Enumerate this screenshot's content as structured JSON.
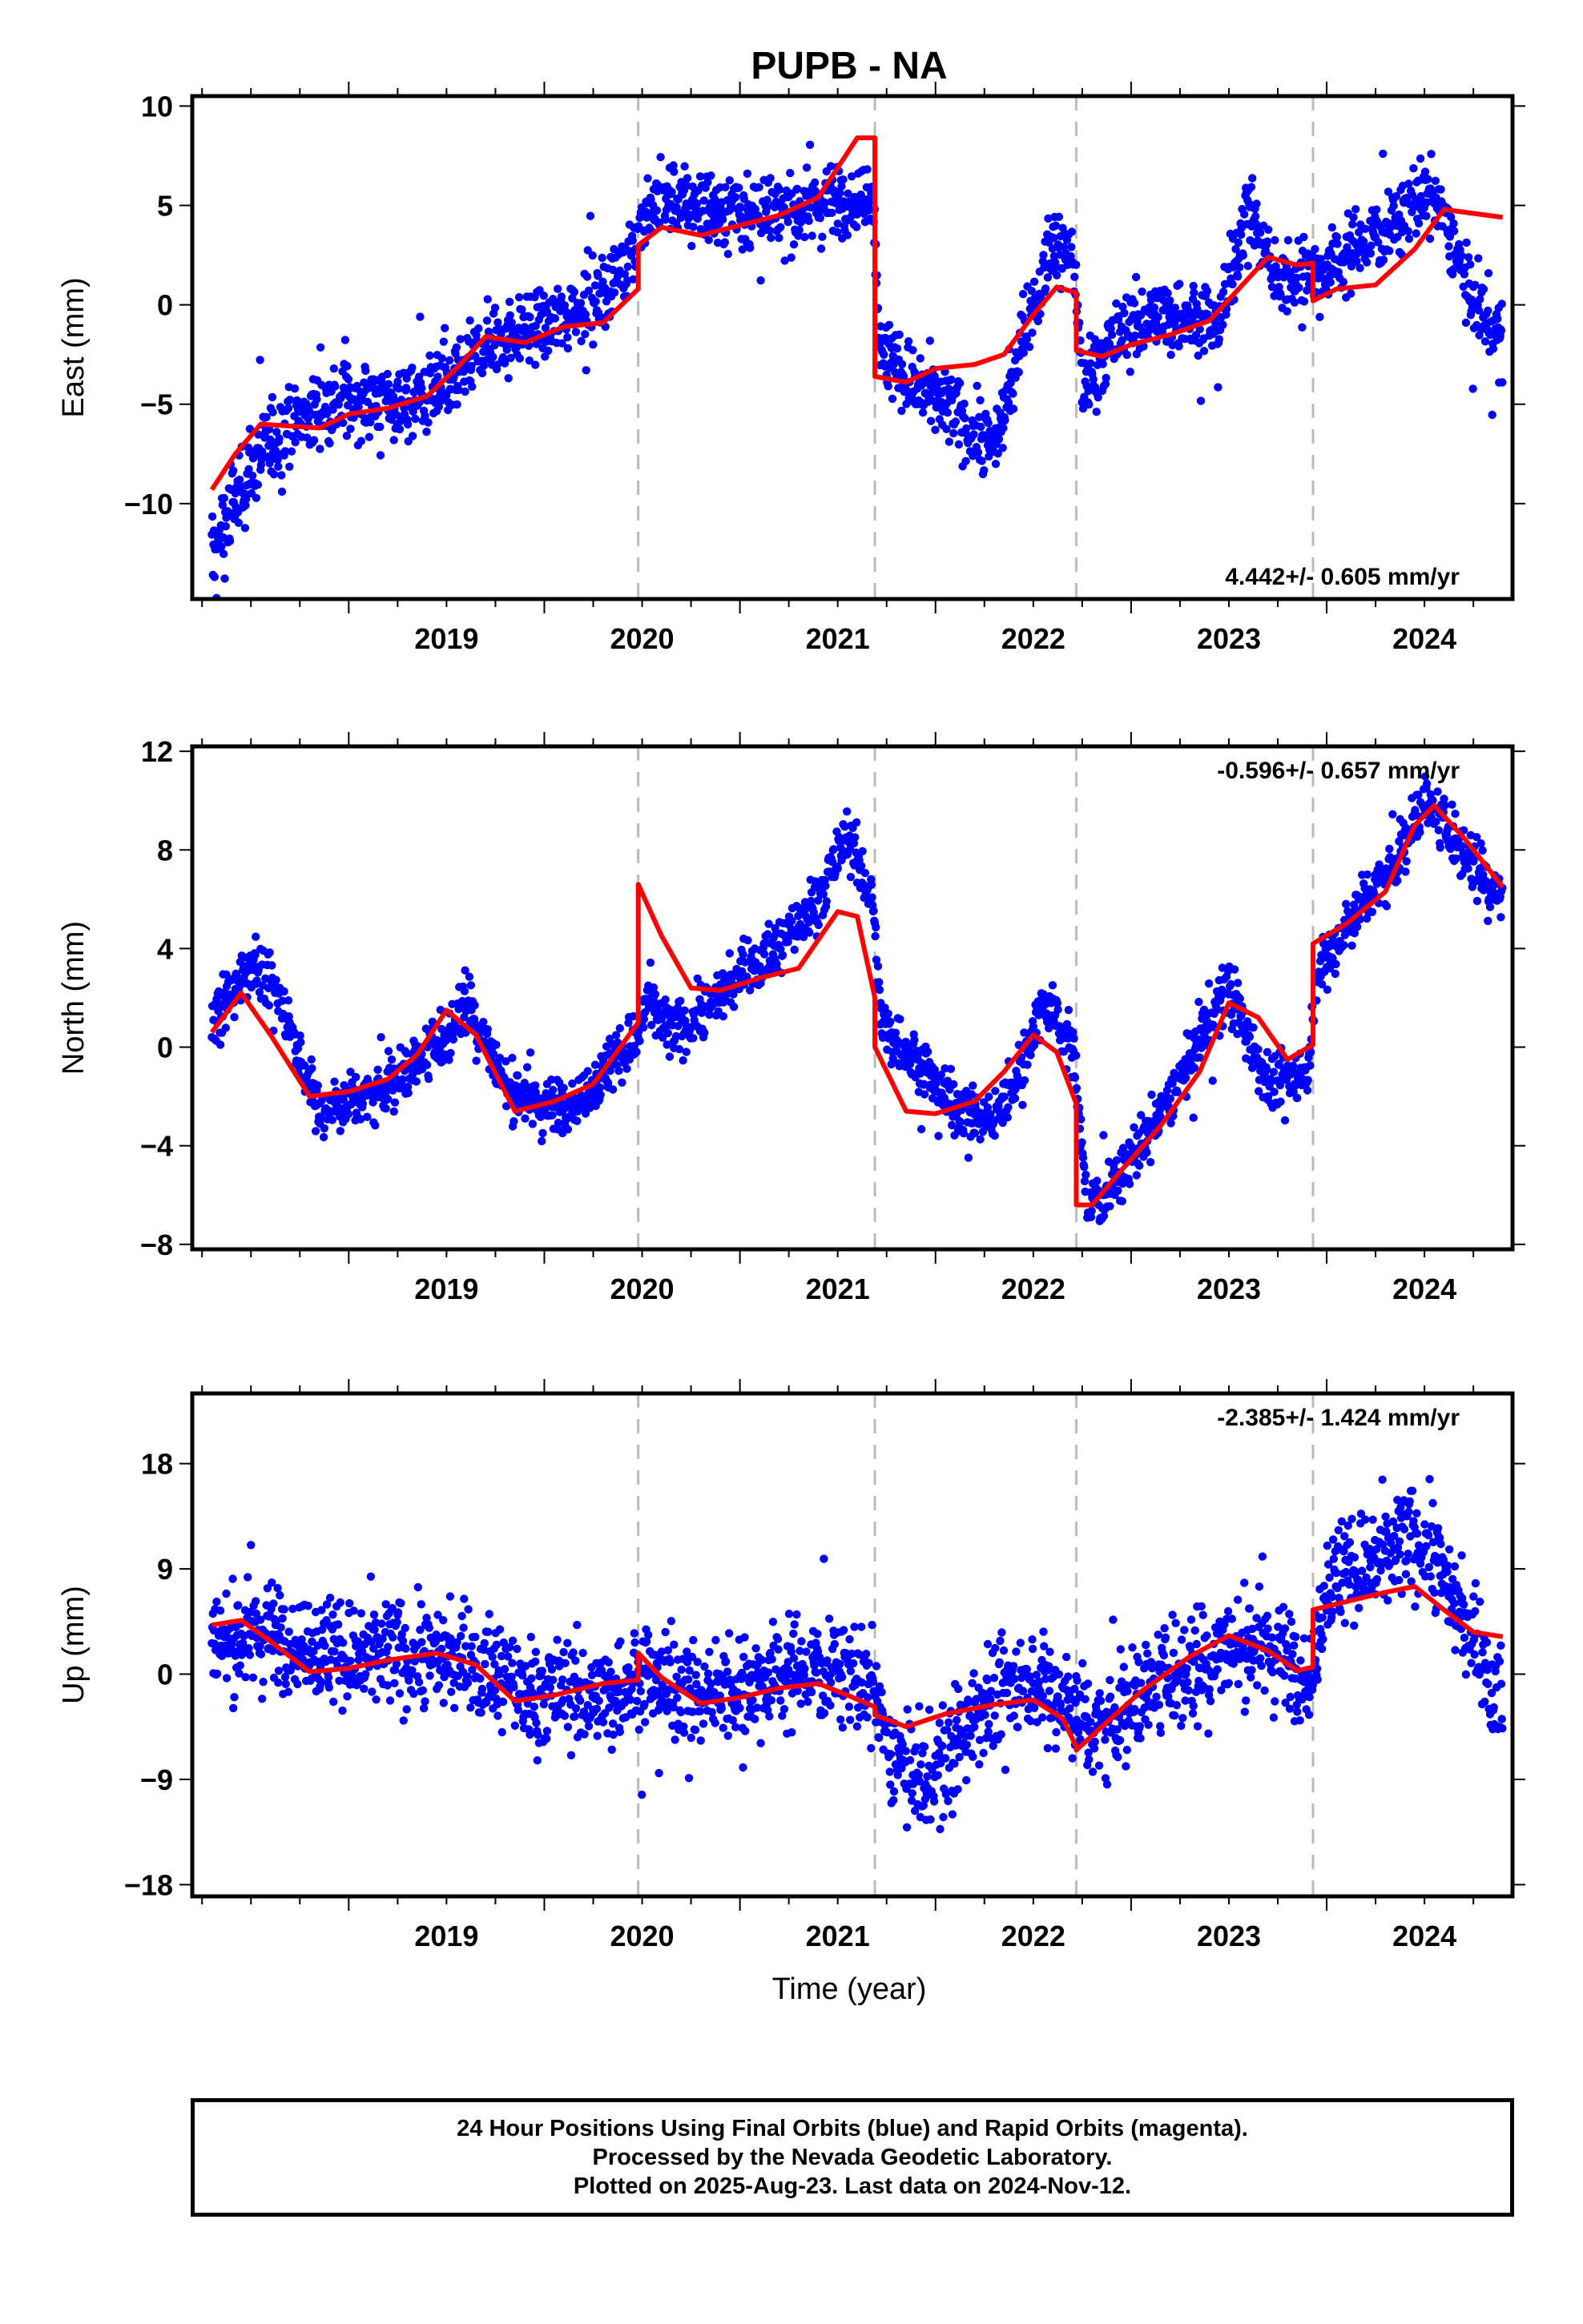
{
  "title": "PUPB - NA",
  "xlabel": "Time (year)",
  "footer": {
    "line1": "24 Hour Positions Using Final Orbits (blue) and Rapid Orbits (magenta).",
    "line2": "Processed by the Nevada Geodetic Laboratory.",
    "line3": "Plotted on 2025-Aug-23. Last data on 2024-Nov-12."
  },
  "colors": {
    "points": "#0000ff",
    "model": "#ff0000",
    "steps": "#bbbbbb",
    "frame": "#000000"
  },
  "chart_data": [
    {
      "type": "scatter",
      "component": "east",
      "ylabel": "East (mm)",
      "rate_label": "4.442+/- 0.605 mm/yr",
      "rate_position": "bottom-right",
      "xlim": [
        2018.2,
        2024.95
      ],
      "ylim": [
        -14.8,
        10.5
      ],
      "xticks": [
        "2019",
        "2020",
        "2021",
        "2022",
        "2023",
        "2024"
      ],
      "yticks": [
        10,
        5,
        0,
        -5,
        -10
      ],
      "ytick_labels": [
        "10",
        "5",
        "0",
        "−5",
        "−10"
      ],
      "step_epochs": [
        2020.48,
        2021.69,
        2022.72,
        2023.93
      ],
      "model_series": {
        "x": [
          2018.3,
          2018.42,
          2018.55,
          2018.7,
          2018.85,
          2019.0,
          2019.2,
          2019.4,
          2019.55,
          2019.7,
          2019.9,
          2020.1,
          2020.3,
          2020.48,
          2020.48,
          2020.6,
          2020.8,
          2021.0,
          2021.2,
          2021.4,
          2021.6,
          2021.69,
          2021.69,
          2021.85,
          2022.0,
          2022.2,
          2022.35,
          2022.5,
          2022.62,
          2022.72,
          2022.72,
          2022.85,
          2023.0,
          2023.2,
          2023.4,
          2023.55,
          2023.7,
          2023.85,
          2023.93,
          2023.93,
          2024.05,
          2024.25,
          2024.45,
          2024.6,
          2024.75,
          2024.9
        ],
        "y": [
          -9.3,
          -7.5,
          -6.0,
          -6.1,
          -6.2,
          -5.5,
          -5.2,
          -4.6,
          -3.2,
          -1.6,
          -1.9,
          -1.1,
          -0.9,
          0.8,
          3.0,
          3.9,
          3.5,
          4.0,
          4.5,
          5.4,
          8.4,
          8.4,
          -3.6,
          -3.9,
          -3.2,
          -3.0,
          -2.5,
          -0.5,
          0.9,
          0.6,
          -2.3,
          -2.6,
          -2.0,
          -1.5,
          -0.8,
          0.8,
          2.4,
          2.0,
          2.1,
          0.2,
          0.8,
          1.0,
          2.8,
          4.8,
          4.6,
          4.4
        ]
      },
      "point_trend": {
        "x": [
          2018.3,
          2018.45,
          2018.6,
          2018.8,
          2019.0,
          2019.3,
          2019.5,
          2019.7,
          2020.0,
          2020.3,
          2020.48,
          2020.6,
          2020.9,
          2021.2,
          2021.5,
          2021.68,
          2021.72,
          2021.9,
          2022.1,
          2022.3,
          2022.45,
          2022.6,
          2022.71,
          2022.75,
          2022.9,
          2023.1,
          2023.3,
          2023.45,
          2023.6,
          2023.75,
          2023.92,
          2023.95,
          2024.1,
          2024.3,
          2024.5,
          2024.6,
          2024.75,
          2024.9
        ],
        "y": [
          -12.5,
          -9.0,
          -7.0,
          -5.5,
          -4.8,
          -4.9,
          -4.0,
          -2.0,
          -1.0,
          0.5,
          3.5,
          5.5,
          4.8,
          4.5,
          5.3,
          5.5,
          -2.5,
          -4.0,
          -5.5,
          -7.0,
          -1.5,
          3.0,
          2.0,
          -4.0,
          -2.0,
          -0.5,
          -0.5,
          -1.0,
          5.0,
          1.0,
          2.0,
          1.5,
          2.5,
          4.0,
          5.5,
          4.5,
          0.0,
          -2.0
        ]
      },
      "noise_mm": 1.3
    },
    {
      "type": "scatter",
      "component": "north",
      "ylabel": "North (mm)",
      "rate_label": "-0.596+/- 0.657 mm/yr",
      "rate_position": "top-right",
      "xlim": [
        2018.2,
        2024.95
      ],
      "ylim": [
        -8.2,
        12.2
      ],
      "xticks": [
        "2019",
        "2020",
        "2021",
        "2022",
        "2023",
        "2024"
      ],
      "yticks": [
        12,
        8,
        4,
        0,
        -4,
        -8
      ],
      "ytick_labels": [
        "12",
        "8",
        "4",
        "0",
        "−4",
        "−8"
      ],
      "step_epochs": [
        2020.48,
        2021.69,
        2022.72,
        2023.93
      ],
      "model_series": {
        "x": [
          2018.3,
          2018.45,
          2018.6,
          2018.8,
          2019.0,
          2019.2,
          2019.35,
          2019.5,
          2019.65,
          2019.85,
          2020.05,
          2020.25,
          2020.48,
          2020.48,
          2020.6,
          2020.75,
          2020.9,
          2021.1,
          2021.3,
          2021.5,
          2021.6,
          2021.69,
          2021.69,
          2021.85,
          2022.0,
          2022.2,
          2022.35,
          2022.5,
          2022.62,
          2022.72,
          2022.72,
          2022.8,
          2022.95,
          2023.15,
          2023.35,
          2023.5,
          2023.65,
          2023.8,
          2023.93,
          2023.93,
          2024.1,
          2024.3,
          2024.45,
          2024.55,
          2024.7,
          2024.9
        ],
        "y": [
          0.6,
          2.2,
          0.5,
          -2.0,
          -1.8,
          -1.3,
          -0.3,
          1.5,
          0.5,
          -2.6,
          -2.2,
          -1.5,
          1.0,
          6.6,
          4.5,
          2.4,
          2.3,
          2.8,
          3.2,
          5.5,
          5.3,
          2.0,
          0.0,
          -2.6,
          -2.7,
          -2.2,
          -1.0,
          0.5,
          -0.2,
          -2.3,
          -6.4,
          -6.4,
          -5.0,
          -3.2,
          -1.0,
          1.8,
          1.2,
          -0.5,
          0.1,
          4.2,
          5.0,
          6.3,
          9.0,
          9.8,
          8.5,
          6.5
        ]
      },
      "point_trend": {
        "x": [
          2018.3,
          2018.5,
          2018.65,
          2018.85,
          2019.1,
          2019.3,
          2019.5,
          2019.6,
          2019.8,
          2020.0,
          2020.2,
          2020.48,
          2020.52,
          2020.65,
          2020.8,
          2021.0,
          2021.2,
          2021.4,
          2021.55,
          2021.68,
          2021.72,
          2021.9,
          2022.1,
          2022.3,
          2022.45,
          2022.55,
          2022.7,
          2022.78,
          2022.9,
          2023.1,
          2023.3,
          2023.5,
          2023.7,
          2023.9,
          2023.95,
          2024.15,
          2024.35,
          2024.5,
          2024.7,
          2024.9
        ],
        "y": [
          1.0,
          3.5,
          2.0,
          -2.5,
          -2.0,
          -1.0,
          0.5,
          2.0,
          -1.5,
          -2.5,
          -2.0,
          0.5,
          2.0,
          0.5,
          1.5,
          3.0,
          4.0,
          6.0,
          8.5,
          6.0,
          1.0,
          -0.5,
          -2.5,
          -3.0,
          -0.5,
          2.0,
          0.0,
          -6.5,
          -5.5,
          -3.5,
          -0.5,
          2.5,
          -1.5,
          -1.0,
          3.0,
          5.5,
          7.5,
          10.0,
          8.0,
          6.0
        ]
      },
      "noise_mm": 0.8
    },
    {
      "type": "scatter",
      "component": "up",
      "ylabel": "Up (mm)",
      "rate_label": "-2.385+/- 1.424 mm/yr",
      "rate_position": "top-right",
      "xlim": [
        2018.2,
        2024.95
      ],
      "ylim": [
        -19.0,
        24.0
      ],
      "xticks": [
        "2019",
        "2020",
        "2021",
        "2022",
        "2023",
        "2024"
      ],
      "yticks": [
        18,
        9,
        0,
        -9,
        -18
      ],
      "ytick_labels": [
        "18",
        "9",
        "0",
        "−9",
        "−18"
      ],
      "step_epochs": [
        2020.48,
        2021.69,
        2022.72,
        2023.93
      ],
      "model_series": {
        "x": [
          2018.3,
          2018.45,
          2018.6,
          2018.8,
          2019.0,
          2019.2,
          2019.45,
          2019.65,
          2019.85,
          2020.05,
          2020.3,
          2020.48,
          2020.48,
          2020.6,
          2020.8,
          2021.0,
          2021.2,
          2021.4,
          2021.55,
          2021.69,
          2021.69,
          2021.85,
          2022.05,
          2022.3,
          2022.5,
          2022.65,
          2022.72,
          2022.72,
          2022.85,
          2023.05,
          2023.3,
          2023.5,
          2023.7,
          2023.85,
          2023.93,
          2023.93,
          2024.1,
          2024.3,
          2024.45,
          2024.6,
          2024.75,
          2024.9
        ],
        "y": [
          4.2,
          4.6,
          2.8,
          0.2,
          0.5,
          1.2,
          1.8,
          0.8,
          -2.3,
          -1.8,
          -0.8,
          -0.5,
          1.8,
          -0.3,
          -2.5,
          -2.0,
          -1.2,
          -0.8,
          -1.8,
          -2.8,
          -3.5,
          -4.5,
          -3.4,
          -2.6,
          -2.2,
          -3.8,
          -6.2,
          -6.5,
          -4.5,
          -1.5,
          1.5,
          3.3,
          2.0,
          0.3,
          0.6,
          5.5,
          6.2,
          7.0,
          7.5,
          5.5,
          3.6,
          3.2
        ]
      },
      "point_trend": {
        "x": [
          2018.3,
          2018.6,
          2019.0,
          2019.5,
          2019.9,
          2020.3,
          2020.48,
          2020.8,
          2021.2,
          2021.5,
          2021.69,
          2021.75,
          2021.95,
          2022.2,
          2022.5,
          2022.72,
          2022.8,
          2023.2,
          2023.6,
          2023.93,
          2024.0,
          2024.3,
          2024.5,
          2024.7,
          2024.9
        ],
        "y": [
          3.0,
          3.5,
          1.5,
          2.0,
          -1.5,
          -2.0,
          0.0,
          -2.0,
          0.0,
          1.0,
          -2.0,
          -6.0,
          -10.0,
          -3.0,
          0.0,
          -3.0,
          -5.0,
          0.0,
          3.0,
          0.0,
          8.0,
          10.0,
          12.0,
          5.0,
          -3.0
        ]
      },
      "noise_mm": 3.2
    }
  ]
}
